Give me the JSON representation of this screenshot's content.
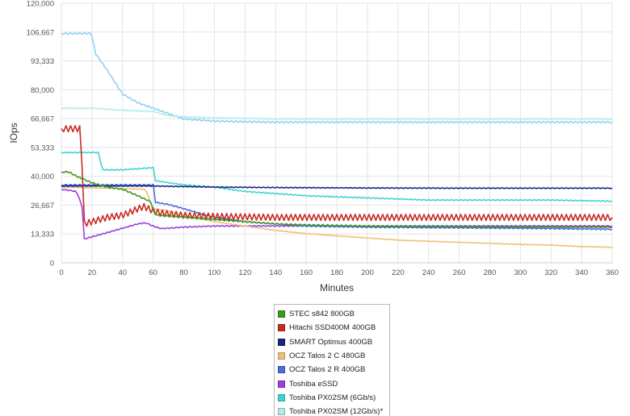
{
  "chart_data": {
    "type": "line",
    "title": "",
    "xlabel": "Minutes",
    "ylabel": "IOps",
    "xlim": [
      0,
      360
    ],
    "ylim": [
      0,
      120000
    ],
    "grid": true,
    "legend_position": "bottom",
    "x_ticks": [
      "0",
      "20",
      "40",
      "60",
      "80",
      "100",
      "120",
      "140",
      "160",
      "180",
      "200",
      "220",
      "240",
      "260",
      "280",
      "300",
      "320",
      "340",
      "360"
    ],
    "y_ticks": [
      "0",
      "13,333",
      "26,667",
      "40,000",
      "53,333",
      "66,667",
      "80,000",
      "93,333",
      "106,667",
      "120,000"
    ],
    "series": [
      {
        "name": "STEC s842 800GB",
        "color": "#3f9a1f",
        "noise": 300,
        "points": [
          [
            0,
            42000
          ],
          [
            5,
            42000
          ],
          [
            10,
            40000
          ],
          [
            20,
            37000
          ],
          [
            30,
            35000
          ],
          [
            40,
            34000
          ],
          [
            50,
            31000
          ],
          [
            59,
            28000
          ],
          [
            60,
            24000
          ],
          [
            62,
            22000
          ],
          [
            80,
            21000
          ],
          [
            100,
            20000
          ],
          [
            120,
            19000
          ],
          [
            140,
            18000
          ],
          [
            160,
            17500
          ],
          [
            200,
            17000
          ],
          [
            260,
            16800
          ],
          [
            300,
            16600
          ],
          [
            360,
            16500
          ]
        ]
      },
      {
        "name": "Hitachi SSD400M 400GB",
        "color": "#c82b23",
        "noise": 1400,
        "points": [
          [
            0,
            62000
          ],
          [
            13,
            62000
          ],
          [
            14,
            30000
          ],
          [
            15,
            18000
          ],
          [
            20,
            19000
          ],
          [
            30,
            21000
          ],
          [
            40,
            22000
          ],
          [
            50,
            25000
          ],
          [
            54,
            26000
          ],
          [
            60,
            24000
          ],
          [
            65,
            23000
          ],
          [
            80,
            22000
          ],
          [
            100,
            21500
          ],
          [
            140,
            21000
          ],
          [
            200,
            21000
          ],
          [
            260,
            21000
          ],
          [
            300,
            21000
          ],
          [
            360,
            21000
          ]
        ]
      },
      {
        "name": "SMART Optimus 400GB",
        "color": "#1a2580",
        "noise": 150,
        "points": [
          [
            0,
            35500
          ],
          [
            60,
            35500
          ],
          [
            100,
            35000
          ],
          [
            140,
            34800
          ],
          [
            200,
            34600
          ],
          [
            260,
            34500
          ],
          [
            300,
            34500
          ],
          [
            360,
            34500
          ]
        ]
      },
      {
        "name": "OCZ Talos 2 C 480GB",
        "color": "#f0c07a",
        "noise": 150,
        "points": [
          [
            0,
            35000
          ],
          [
            55,
            34000
          ],
          [
            60,
            25000
          ],
          [
            70,
            24000
          ],
          [
            80,
            22000
          ],
          [
            100,
            19000
          ],
          [
            120,
            17000
          ],
          [
            140,
            15000
          ],
          [
            160,
            13500
          ],
          [
            180,
            12500
          ],
          [
            200,
            11500
          ],
          [
            220,
            10500
          ],
          [
            240,
            10000
          ],
          [
            260,
            9500
          ],
          [
            280,
            9000
          ],
          [
            300,
            8500
          ],
          [
            320,
            8200
          ],
          [
            340,
            7500
          ],
          [
            360,
            7200
          ]
        ]
      },
      {
        "name": "OCZ Talos 2 R 400GB",
        "color": "#4a6ee0",
        "noise": 250,
        "points": [
          [
            0,
            36000
          ],
          [
            60,
            36000
          ],
          [
            61,
            28000
          ],
          [
            70,
            27000
          ],
          [
            80,
            25000
          ],
          [
            100,
            21000
          ],
          [
            120,
            19000
          ],
          [
            140,
            18000
          ],
          [
            160,
            17000
          ],
          [
            200,
            16500
          ],
          [
            260,
            16200
          ],
          [
            300,
            16000
          ],
          [
            360,
            15500
          ]
        ]
      },
      {
        "name": "Toshiba eSSD",
        "color": "#9a3ee0",
        "noise": 200,
        "points": [
          [
            0,
            34000
          ],
          [
            10,
            33000
          ],
          [
            14,
            25000
          ],
          [
            15,
            11000
          ],
          [
            20,
            12000
          ],
          [
            30,
            14000
          ],
          [
            40,
            16000
          ],
          [
            50,
            18000
          ],
          [
            55,
            18500
          ],
          [
            60,
            17000
          ],
          [
            65,
            15800
          ],
          [
            80,
            16500
          ],
          [
            100,
            17000
          ],
          [
            140,
            17000
          ],
          [
            200,
            17000
          ],
          [
            260,
            17000
          ],
          [
            300,
            17000
          ],
          [
            360,
            17000
          ]
        ]
      },
      {
        "name": "Toshiba PX02SM (6Gb/s)",
        "color": "#3ed3d3",
        "noise": 200,
        "points": [
          [
            0,
            51000
          ],
          [
            25,
            51000
          ],
          [
            26,
            43000
          ],
          [
            40,
            43000
          ],
          [
            60,
            44000
          ],
          [
            61,
            38000
          ],
          [
            80,
            36000
          ],
          [
            100,
            35000
          ],
          [
            120,
            33000
          ],
          [
            140,
            32000
          ],
          [
            160,
            31000
          ],
          [
            200,
            30000
          ],
          [
            240,
            29000
          ],
          [
            280,
            29000
          ],
          [
            320,
            29000
          ],
          [
            360,
            28500
          ]
        ]
      },
      {
        "name": "Toshiba PX02SM (12Gb/s)*",
        "color": "#b2ecec",
        "noise": 200,
        "points": [
          [
            0,
            71500
          ],
          [
            20,
            71500
          ],
          [
            40,
            70500
          ],
          [
            60,
            70000
          ],
          [
            70,
            68000
          ],
          [
            80,
            67500
          ],
          [
            100,
            67000
          ],
          [
            140,
            66500
          ],
          [
            200,
            66500
          ],
          [
            260,
            66500
          ],
          [
            300,
            66500
          ],
          [
            360,
            66500
          ]
        ]
      },
      {
        "name": "",
        "color": "#8fd2f2",
        "noise": 350,
        "points": [
          [
            0,
            106000
          ],
          [
            20,
            106000
          ],
          [
            22,
            97000
          ],
          [
            30,
            89000
          ],
          [
            40,
            78000
          ],
          [
            50,
            74000
          ],
          [
            60,
            71500
          ],
          [
            70,
            69000
          ],
          [
            80,
            66500
          ],
          [
            100,
            65500
          ],
          [
            140,
            65000
          ],
          [
            200,
            65000
          ],
          [
            260,
            65000
          ],
          [
            300,
            65000
          ],
          [
            360,
            65000
          ]
        ]
      }
    ]
  }
}
